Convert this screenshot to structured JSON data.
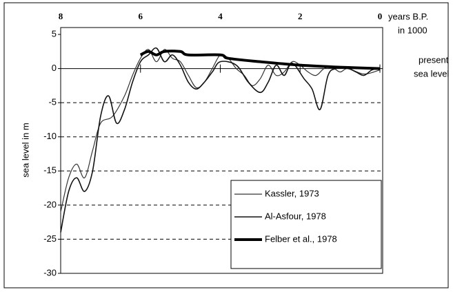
{
  "chart_data": {
    "type": "line",
    "x_label": [
      "years B.P.",
      "in 1000"
    ],
    "y_label": "sea level in m",
    "annotation": [
      "present",
      "sea level"
    ],
    "xlim": [
      8,
      0
    ],
    "xticks": [
      8,
      6,
      4,
      2,
      0
    ],
    "ylim": [
      -30,
      5
    ],
    "yticks": [
      5,
      0,
      -5,
      -10,
      -15,
      -20,
      -25,
      -30
    ],
    "grid": true,
    "legend": "lower right",
    "series": [
      {
        "name": "Kassler, 1973",
        "color": "#333333",
        "x": [
          8,
          7.8,
          7.6,
          7.4,
          7.2,
          7,
          6.7,
          6.4,
          6.2,
          6,
          5.8,
          5.6,
          5.4,
          5.2,
          5,
          4.8,
          4.6,
          4.4,
          4.2,
          4,
          3.8,
          3.6,
          3.4,
          3.2,
          3,
          2.8,
          2.6,
          2.4,
          2.2,
          2,
          1.8,
          1.6,
          1.4,
          1.2,
          1,
          0.8,
          0.4,
          0
        ],
        "values": [
          -21,
          -16,
          -14,
          -16,
          -12,
          -8,
          -7,
          -4,
          -1,
          1.5,
          2.8,
          1,
          2.8,
          1.5,
          1,
          -1,
          -2.8,
          -2,
          0,
          2,
          1.5,
          0,
          -1,
          -2.5,
          -1.5,
          0.5,
          -1,
          -0.5,
          1,
          0.5,
          -0.5,
          -1,
          0,
          0.2,
          -0.5,
          0,
          -0.8,
          -0.2
        ]
      },
      {
        "name": "Al-Asfour, 1978",
        "color": "#111111",
        "x": [
          8,
          7.8,
          7.6,
          7.4,
          7.2,
          7,
          6.8,
          6.6,
          6.4,
          6.2,
          6,
          5.8,
          5.6,
          5.4,
          5.2,
          5,
          4.8,
          4.6,
          4.4,
          4.2,
          4,
          3.6,
          3.3,
          3,
          2.8,
          2.6,
          2.4,
          2.2,
          1.9,
          1.7,
          1.5,
          1.3,
          1.1,
          0.8,
          0.6,
          0.4,
          0.2,
          0
        ],
        "values": [
          -24,
          -18,
          -16,
          -18,
          -15,
          -7,
          -4,
          -8,
          -6,
          -2,
          1,
          2,
          3,
          1,
          2,
          0.5,
          -2,
          -3,
          -2,
          -0.5,
          1,
          0.5,
          -2,
          -3.5,
          -2,
          0.5,
          -1,
          0.8,
          -1.5,
          -3,
          -6,
          -1,
          0,
          0,
          -0.5,
          -1,
          -0.2,
          0
        ]
      },
      {
        "name": "Felber et al., 1978",
        "color": "#000000",
        "x": [
          6,
          5.8,
          5.6,
          5.4,
          5,
          4.8,
          4,
          3.8,
          3,
          2,
          1,
          0
        ],
        "values": [
          2,
          2.5,
          2,
          2.5,
          2.5,
          2,
          2,
          1.5,
          1,
          0.5,
          0.2,
          0
        ]
      }
    ]
  }
}
